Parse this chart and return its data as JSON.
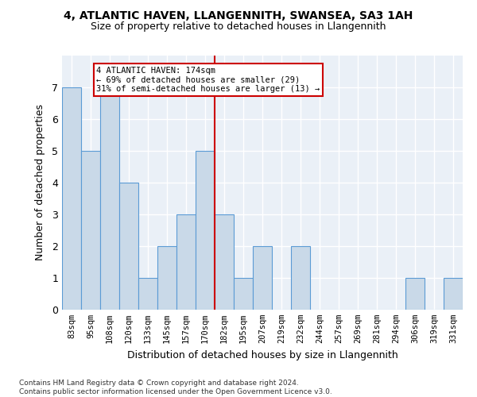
{
  "title_line1": "4, ATLANTIC HAVEN, LLANGENNITH, SWANSEA, SA3 1AH",
  "title_line2": "Size of property relative to detached houses in Llangennith",
  "xlabel": "Distribution of detached houses by size in Llangennith",
  "ylabel": "Number of detached properties",
  "bar_labels": [
    "83sqm",
    "95sqm",
    "108sqm",
    "120sqm",
    "133sqm",
    "145sqm",
    "157sqm",
    "170sqm",
    "182sqm",
    "195sqm",
    "207sqm",
    "219sqm",
    "232sqm",
    "244sqm",
    "257sqm",
    "269sqm",
    "281sqm",
    "294sqm",
    "306sqm",
    "319sqm",
    "331sqm"
  ],
  "bar_values": [
    7,
    5,
    7,
    4,
    1,
    2,
    3,
    5,
    3,
    1,
    2,
    0,
    2,
    0,
    0,
    0,
    0,
    0,
    1,
    0,
    1
  ],
  "bar_color": "#c9d9e8",
  "bar_edge_color": "#5b9bd5",
  "background_color": "#eaf0f7",
  "grid_color": "#ffffff",
  "vline_x_index": 7.5,
  "vline_color": "#cc0000",
  "annotation_text": "4 ATLANTIC HAVEN: 174sqm\n← 69% of detached houses are smaller (29)\n31% of semi-detached houses are larger (13) →",
  "annotation_box_color": "#ffffff",
  "annotation_box_edge": "#cc0000",
  "ylim": [
    0,
    8
  ],
  "yticks": [
    0,
    1,
    2,
    3,
    4,
    5,
    6,
    7
  ],
  "footnote": "Contains HM Land Registry data © Crown copyright and database right 2024.\nContains public sector information licensed under the Open Government Licence v3.0."
}
